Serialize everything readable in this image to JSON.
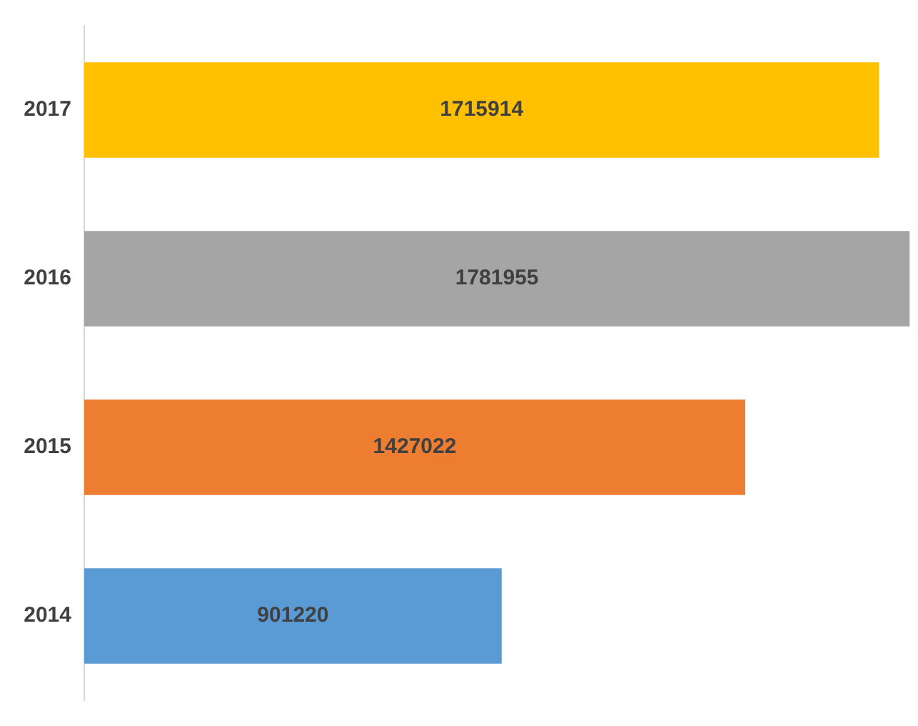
{
  "chart_data": {
    "type": "bar",
    "orientation": "horizontal",
    "categories": [
      "2017",
      "2016",
      "2015",
      "2014"
    ],
    "values": [
      1715914,
      1781955,
      1427022,
      901220
    ],
    "colors": [
      "#ffc000",
      "#a5a5a5",
      "#ed7d31",
      "#5b9bd5"
    ],
    "data_labels": true,
    "legend": false
  }
}
